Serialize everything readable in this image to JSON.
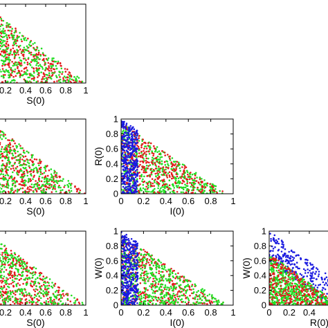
{
  "figure": {
    "colors": {
      "red": "#e41a1c",
      "green": "#22dd22",
      "blue": "#1a1adf",
      "axis": "#000000"
    }
  },
  "chart_data": [
    {
      "id": "p1",
      "type": "scatter",
      "xlabel": "S(0)",
      "ylabel": "",
      "xlim": [
        0,
        1
      ],
      "ylim": [
        0,
        1
      ],
      "xticks": [
        "0.2",
        "0.4",
        "0.6",
        "0.8",
        "1"
      ],
      "yticks": [],
      "clusters": [
        {
          "color": "red",
          "region": "x+y<=1",
          "count": 420
        },
        {
          "color": "green",
          "region": "x+y<=1",
          "count": 380
        }
      ]
    },
    {
      "id": "p2",
      "type": "scatter",
      "xlabel": "S(0)",
      "ylabel": "",
      "xlim": [
        0,
        1
      ],
      "ylim": [
        0,
        1
      ],
      "xticks": [
        "0.2",
        "0.4",
        "0.6",
        "0.8",
        "1"
      ],
      "yticks": [],
      "clusters": [
        {
          "color": "red",
          "region": "x+y<=1",
          "count": 420
        },
        {
          "color": "green",
          "region": "x+y<=1",
          "count": 380
        }
      ]
    },
    {
      "id": "p3",
      "type": "scatter",
      "xlabel": "I(0)",
      "ylabel": "R(0)",
      "xlim": [
        0,
        1
      ],
      "ylim": [
        0,
        1
      ],
      "xticks": [
        "0",
        "0.2",
        "0.4",
        "0.6",
        "0.8",
        "1"
      ],
      "yticks": [
        "0",
        "0.2",
        "0.4",
        "0.6",
        "0.8",
        "1"
      ],
      "clusters": [
        {
          "color": "green",
          "region": "x+y<=0.95",
          "count": 520
        },
        {
          "color": "red",
          "region": "x+y<=0.95",
          "count": 360
        },
        {
          "color": "blue",
          "region": "x<=0.15, x+y<=1",
          "count": 420
        }
      ]
    },
    {
      "id": "p4",
      "type": "scatter",
      "xlabel": "S(0)",
      "ylabel": "",
      "xlim": [
        0,
        1
      ],
      "ylim": [
        0,
        1
      ],
      "xticks": [
        "0.2",
        "0.4",
        "0.6",
        "0.8",
        "1"
      ],
      "yticks": [],
      "clusters": [
        {
          "color": "red",
          "region": "x+y<=1",
          "count": 420
        },
        {
          "color": "green",
          "region": "x+y<=1",
          "count": 380
        }
      ]
    },
    {
      "id": "p5",
      "type": "scatter",
      "xlabel": "I(0)",
      "ylabel": "W(0)",
      "xlim": [
        0,
        1
      ],
      "ylim": [
        0,
        1
      ],
      "xticks": [
        "0",
        "0.2",
        "0.4",
        "0.6",
        "0.8",
        "1"
      ],
      "yticks": [
        "0",
        "0.2",
        "0.4",
        "0.6",
        "0.8",
        "1"
      ],
      "clusters": [
        {
          "color": "red",
          "region": "x+y<=0.95",
          "count": 380
        },
        {
          "color": "green",
          "region": "x+y<=0.95",
          "count": 500
        },
        {
          "color": "blue",
          "region": "x<=0.15, x+y<=1",
          "count": 400
        }
      ]
    },
    {
      "id": "p6",
      "type": "scatter",
      "xlabel": "R(0)",
      "ylabel": "W(0)",
      "xlim": [
        0,
        1
      ],
      "ylim": [
        0,
        1
      ],
      "xticks": [
        "0",
        "0.2",
        "0.4"
      ],
      "yticks": [
        "0",
        "0.2",
        "0.4",
        "0.6",
        "0.8",
        "1"
      ],
      "clusters": [
        {
          "color": "blue",
          "region": "0.6<=x+y<=1",
          "count": 320
        },
        {
          "color": "green",
          "region": "x+y<=0.7",
          "count": 560
        },
        {
          "color": "red",
          "region": "x+y<=0.7",
          "count": 260
        }
      ]
    }
  ]
}
